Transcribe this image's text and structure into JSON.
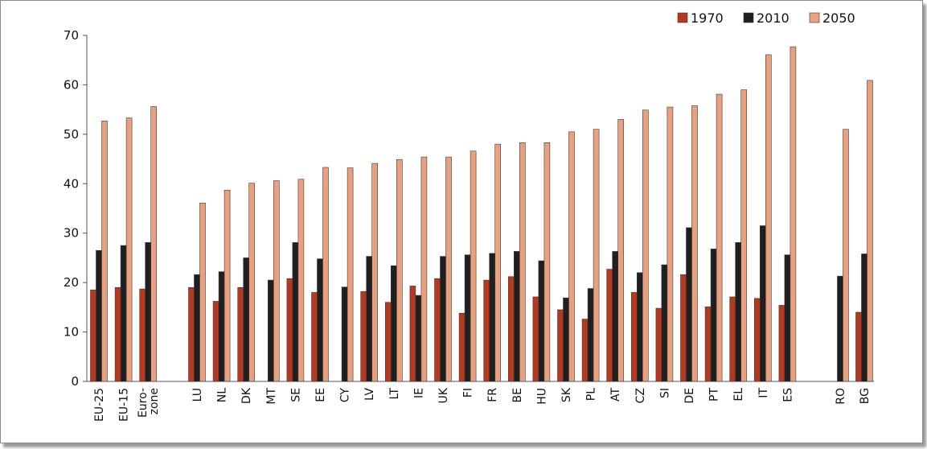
{
  "chart_data": {
    "type": "bar",
    "title": "",
    "xlabel": "",
    "ylabel": "",
    "ylim": [
      0,
      70
    ],
    "yticks": [
      0,
      10,
      20,
      30,
      40,
      50,
      60,
      70
    ],
    "grid": false,
    "legend_position": "top-right",
    "categories": [
      "EU-25",
      "EU-15",
      "Euro-\nzone",
      "LU",
      "NL",
      "DK",
      "MT",
      "SE",
      "EE",
      "CY",
      "LV",
      "LT",
      "IE",
      "UK",
      "FI",
      "FR",
      "BE",
      "HU",
      "SK",
      "PL",
      "AT",
      "CZ",
      "SI",
      "DE",
      "PT",
      "EL",
      "IT",
      "ES",
      "RO",
      "BG"
    ],
    "series": [
      {
        "name": "1970",
        "color": "#b5381f",
        "values": [
          18.5,
          19,
          18.7,
          19,
          16.2,
          19,
          null,
          20.8,
          18,
          null,
          18.2,
          16,
          19.3,
          20.8,
          13.8,
          20.5,
          21.2,
          17.1,
          14.5,
          12.6,
          22.7,
          18,
          14.8,
          21.6,
          15.1,
          17.1,
          16.8,
          15.4,
          null,
          14
        ]
      },
      {
        "name": "2010",
        "color": "#1f1f1f",
        "values": [
          26.5,
          27.5,
          28.1,
          21.6,
          22.2,
          25,
          20.5,
          28.1,
          24.8,
          19.1,
          25.3,
          23.4,
          17.4,
          25.3,
          25.6,
          25.9,
          26.3,
          24.4,
          16.9,
          18.8,
          26.3,
          22,
          23.6,
          31.1,
          26.8,
          28.1,
          31.5,
          25.6,
          21.3,
          25.8
        ]
      },
      {
        "name": "2050",
        "color": "#e8a07e",
        "values": [
          52.7,
          53.3,
          55.6,
          36.1,
          38.7,
          40.1,
          40.6,
          40.9,
          43.3,
          43.2,
          44.1,
          44.9,
          45.4,
          45.4,
          46.6,
          48,
          48.3,
          48.3,
          50.5,
          51,
          53,
          54.9,
          55.5,
          55.8,
          58.1,
          59,
          66.1,
          67.7,
          51,
          60.9
        ]
      }
    ]
  }
}
